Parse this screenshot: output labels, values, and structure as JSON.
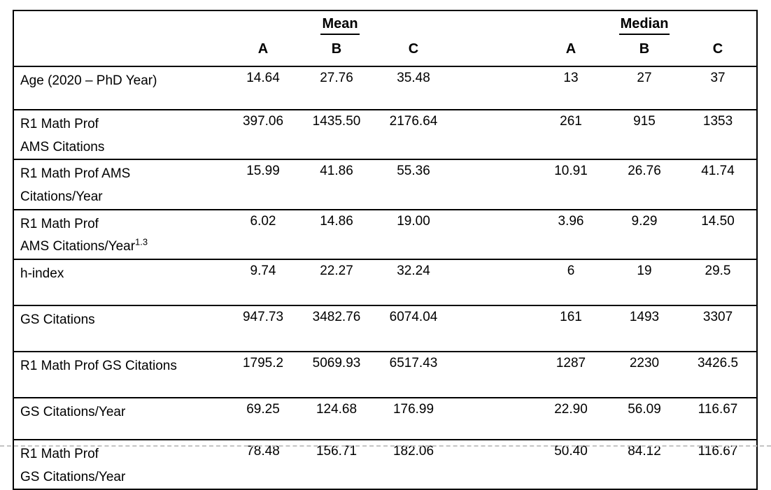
{
  "table": {
    "group_headers": [
      {
        "label": "Mean"
      },
      {
        "label": "Median"
      }
    ],
    "column_headers": [
      "A",
      "B",
      "C"
    ],
    "rows": [
      {
        "label_lines": [
          "Age (2020 – PhD Year)"
        ],
        "superscript": "",
        "mean": [
          "14.64",
          "27.76",
          "35.48"
        ],
        "median": [
          "13",
          "27",
          "37"
        ]
      },
      {
        "label_lines": [
          "R1 Math Prof",
          "AMS Citations"
        ],
        "superscript": "",
        "mean": [
          "397.06",
          "1435.50",
          "2176.64"
        ],
        "median": [
          "261",
          "915",
          "1353"
        ]
      },
      {
        "label_lines": [
          "R1 Math Prof AMS",
          "Citations/Year"
        ],
        "superscript": "",
        "mean": [
          "15.99",
          "41.86",
          "55.36"
        ],
        "median": [
          "10.91",
          "26.76",
          "41.74"
        ]
      },
      {
        "label_lines": [
          "R1 Math Prof",
          "AMS Citations/Year"
        ],
        "superscript": "1.3",
        "mean": [
          "6.02",
          "14.86",
          "19.00"
        ],
        "median": [
          "3.96",
          "9.29",
          "14.50"
        ]
      },
      {
        "label_lines": [
          "h-index"
        ],
        "superscript": "",
        "mean": [
          "9.74",
          "22.27",
          "32.24"
        ],
        "median": [
          "6",
          "19",
          "29.5"
        ]
      },
      {
        "label_lines": [
          "GS Citations"
        ],
        "superscript": "",
        "mean": [
          "947.73",
          "3482.76",
          "6074.04"
        ],
        "median": [
          "161",
          "1493",
          "3307"
        ]
      },
      {
        "label_lines": [
          "R1 Math Prof GS Citations"
        ],
        "superscript": "",
        "mean": [
          "1795.2",
          "5069.93",
          "6517.43"
        ],
        "median": [
          "1287",
          "2230",
          "3426.5"
        ]
      },
      {
        "label_lines": [
          "GS Citations/Year"
        ],
        "superscript": "",
        "mean": [
          "69.25",
          "124.68",
          "176.99"
        ],
        "median": [
          "22.90",
          "56.09",
          "116.67"
        ]
      },
      {
        "label_lines": [
          "R1 Math Prof",
          "GS Citations/Year"
        ],
        "superscript": "",
        "mean": [
          "78.48",
          "156.71",
          "182.06"
        ],
        "median": [
          "50.40",
          "84.12",
          "116.67"
        ]
      }
    ]
  },
  "chart_data": {
    "type": "table",
    "title": "",
    "row_labels": [
      "Age (2020 – PhD Year)",
      "R1 Math Prof AMS Citations",
      "R1 Math Prof AMS Citations/Year",
      "R1 Math Prof AMS Citations/Year^1.3",
      "h-index",
      "GS Citations",
      "R1 Math Prof GS Citations",
      "GS Citations/Year",
      "R1 Math Prof GS Citations/Year"
    ],
    "columns": [
      "Mean A",
      "Mean B",
      "Mean C",
      "Median A",
      "Median B",
      "Median C"
    ],
    "values": [
      [
        14.64,
        27.76,
        35.48,
        13,
        27,
        37
      ],
      [
        397.06,
        1435.5,
        2176.64,
        261,
        915,
        1353
      ],
      [
        15.99,
        41.86,
        55.36,
        10.91,
        26.76,
        41.74
      ],
      [
        6.02,
        14.86,
        19.0,
        3.96,
        9.29,
        14.5
      ],
      [
        9.74,
        22.27,
        32.24,
        6,
        19,
        29.5
      ],
      [
        947.73,
        3482.76,
        6074.04,
        161,
        1493,
        3307
      ],
      [
        1795.2,
        5069.93,
        6517.43,
        1287,
        2230,
        3426.5
      ],
      [
        69.25,
        124.68,
        176.99,
        22.9,
        56.09,
        116.67
      ],
      [
        78.48,
        156.71,
        182.06,
        50.4,
        84.12,
        116.67
      ]
    ]
  }
}
